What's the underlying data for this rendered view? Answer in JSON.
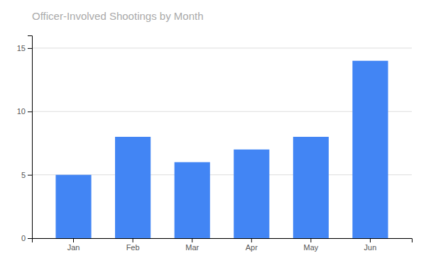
{
  "chart_data": {
    "type": "bar",
    "title": "Officer-Involved Shootings by Month",
    "categories": [
      "Jan",
      "Feb",
      "Mar",
      "Apr",
      "May",
      "Jun"
    ],
    "values": [
      5,
      8,
      6,
      7,
      8,
      14
    ],
    "color": "#4285F4",
    "ylim": [
      0,
      16
    ],
    "yticks": [
      0,
      5,
      10,
      15
    ],
    "grid": true
  }
}
